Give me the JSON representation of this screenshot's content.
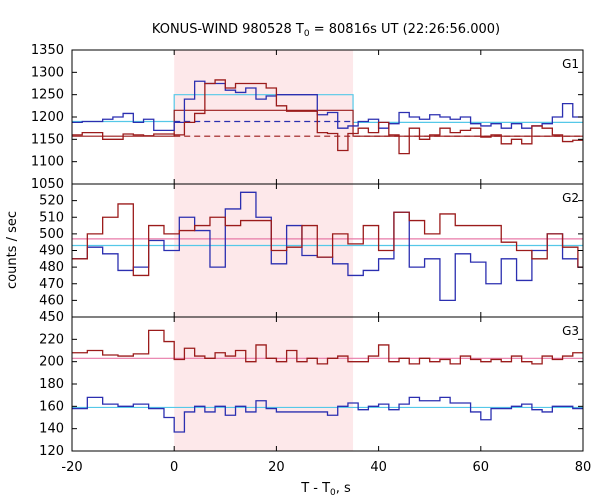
{
  "chart_data": {
    "type": "line",
    "subtype": "step-histogram",
    "title": {
      "prefix": "KONUS-WIND 980528 T",
      "sub": "0",
      "suffix": " = 80816s UT (22:26:56.000)"
    },
    "xlabel": {
      "prefix": "T - T",
      "sub": "0",
      "suffix": ", s"
    },
    "ylabel": "counts / sec",
    "xlim": [
      -20,
      80
    ],
    "x_ticks": [
      -20,
      0,
      20,
      40,
      60,
      80
    ],
    "highlight_interval": [
      0,
      35
    ],
    "colors": {
      "red": "#9b1b1b",
      "blue": "#2b2fb0",
      "cyan": "#55c8e8",
      "pink": "#e87aa8",
      "shade": "#fde8ea"
    },
    "panels": [
      {
        "label": "G1",
        "ylim": [
          1050,
          1350
        ],
        "y_ticks": [
          1050,
          1100,
          1150,
          1200,
          1250,
          1300,
          1350
        ],
        "bin_edges": [
          -20,
          -18,
          -16,
          -14,
          -12,
          -10,
          -8,
          -6,
          -4,
          0,
          2,
          4,
          6,
          8,
          10,
          12,
          14,
          16,
          18,
          20,
          22,
          24,
          26,
          28,
          30,
          32,
          34,
          36,
          38,
          40,
          42,
          44,
          46,
          48,
          50,
          52,
          54,
          56,
          58,
          60,
          62,
          64,
          66,
          68,
          70,
          72,
          74,
          76,
          78,
          80
        ],
        "series": [
          {
            "color_key": "blue",
            "values": [
              1188,
              1190,
              1190,
              1195,
              1200,
              1208,
              1188,
              1195,
              1170,
              1188,
              1240,
              1280,
              1275,
              1275,
              1260,
              1255,
              1265,
              1240,
              1247,
              1250,
              1250,
              1250,
              1250,
              1205,
              1210,
              1175,
              1180,
              1190,
              1195,
              1175,
              1185,
              1210,
              1200,
              1195,
              1205,
              1200,
              1195,
              1200,
              1185,
              1180,
              1185,
              1175,
              1185,
              1175,
              1180,
              1185,
              1200,
              1230,
              1200
            ]
          },
          {
            "color_key": "red",
            "values": [
              1160,
              1165,
              1165,
              1150,
              1150,
              1162,
              1160,
              1158,
              1162,
              1160,
              1188,
              1208,
              1275,
              1283,
              1265,
              1275,
              1275,
              1275,
              1265,
              1225,
              1213,
              1213,
              1213,
              1165,
              1163,
              1125,
              1163,
              1175,
              1165,
              1188,
              1160,
              1118,
              1175,
              1150,
              1160,
              1175,
              1165,
              1170,
              1175,
              1155,
              1160,
              1140,
              1150,
              1140,
              1180,
              1175,
              1160,
              1145,
              1148
            ]
          }
        ],
        "background_fits": [
          {
            "color_key": "cyan",
            "dash": false,
            "points": [
              [
                -20,
                1190
              ],
              [
                0,
                1190
              ],
              [
                0,
                1250
              ],
              [
                35,
                1250
              ],
              [
                35,
                1188
              ],
              [
                80,
                1188
              ]
            ]
          },
          {
            "color_key": "red",
            "dash": false,
            "points": [
              [
                -20,
                1157
              ],
              [
                0,
                1157
              ],
              [
                0,
                1215
              ],
              [
                35,
                1215
              ],
              [
                35,
                1157
              ],
              [
                80,
                1157
              ]
            ]
          },
          {
            "color_key": "blue",
            "dash": true,
            "points": [
              [
                0,
                1190
              ],
              [
                35,
                1190
              ]
            ]
          },
          {
            "color_key": "red",
            "dash": true,
            "points": [
              [
                0,
                1157
              ],
              [
                80,
                1157
              ]
            ]
          }
        ]
      },
      {
        "label": "G2",
        "ylim": [
          450,
          530
        ],
        "y_ticks": [
          450,
          460,
          470,
          480,
          490,
          500,
          510,
          520
        ],
        "bin_edges": [
          -20,
          -17,
          -14,
          -11,
          -8,
          -5,
          -2,
          1,
          4,
          7,
          10,
          13,
          16,
          19,
          22,
          25,
          28,
          31,
          34,
          37,
          40,
          43,
          46,
          49,
          52,
          55,
          58,
          61,
          64,
          67,
          70,
          73,
          76,
          79,
          80
        ],
        "series": [
          {
            "color_key": "blue",
            "values": [
              485,
              492,
              488,
              478,
              480,
              496,
              490,
              510,
              502,
              480,
              515,
              525,
              510,
              482,
              505,
              487,
              486,
              482,
              475,
              478,
              485,
              513,
              480,
              485,
              460,
              488,
              483,
              470,
              485,
              472,
              490,
              500,
              485,
              480
            ]
          },
          {
            "color_key": "red",
            "values": [
              485,
              500,
              510,
              518,
              475,
              505,
              500,
              502,
              505,
              510,
              505,
              508,
              508,
              490,
              492,
              505,
              486,
              500,
              494,
              505,
              490,
              513,
              508,
              500,
              512,
              505,
              505,
              505,
              495,
              490,
              485,
              500,
              492,
              480
            ]
          }
        ],
        "background_fits": [
          {
            "color_key": "pink",
            "dash": false,
            "points": [
              [
                -20,
                497
              ],
              [
                80,
                497
              ]
            ]
          },
          {
            "color_key": "cyan",
            "dash": false,
            "points": [
              [
                -20,
                493
              ],
              [
                80,
                493
              ]
            ]
          }
        ]
      },
      {
        "label": "G3",
        "ylim": [
          120,
          240
        ],
        "y_ticks": [
          120,
          140,
          160,
          180,
          200,
          220
        ],
        "bin_edges": [
          -20,
          -17,
          -14,
          -11,
          -8,
          -5,
          -2,
          0,
          2,
          4,
          6,
          8,
          10,
          12,
          14,
          16,
          18,
          20,
          22,
          24,
          26,
          28,
          30,
          32,
          34,
          36,
          38,
          40,
          42,
          44,
          46,
          48,
          50,
          52,
          54,
          56,
          58,
          60,
          62,
          64,
          66,
          68,
          70,
          72,
          74,
          76,
          78,
          80
        ],
        "series": [
          {
            "color_key": "red",
            "values": [
              208,
              210,
              206,
              205,
              207,
              228,
              218,
              202,
              212,
              205,
              203,
              208,
              205,
              210,
              200,
              215,
              203,
              200,
              210,
              200,
              203,
              198,
              203,
              205,
              200,
              200,
              205,
              215,
              200,
              203,
              198,
              203,
              200,
              202,
              198,
              205,
              202,
              200,
              202,
              200,
              205,
              200,
              198,
              205,
              202,
              205,
              208
            ]
          },
          {
            "color_key": "blue",
            "values": [
              158,
              168,
              162,
              160,
              162,
              158,
              150,
              137,
              155,
              160,
              155,
              160,
              152,
              160,
              155,
              165,
              158,
              155,
              155,
              155,
              155,
              155,
              152,
              160,
              163,
              157,
              160,
              162,
              157,
              162,
              168,
              165,
              165,
              168,
              163,
              163,
              155,
              148,
              158,
              158,
              160,
              162,
              157,
              155,
              160,
              160,
              158
            ]
          }
        ],
        "background_fits": [
          {
            "color_key": "pink",
            "dash": false,
            "points": [
              [
                -20,
                203
              ],
              [
                80,
                203
              ]
            ]
          },
          {
            "color_key": "cyan",
            "dash": false,
            "points": [
              [
                -20,
                159
              ],
              [
                80,
                159
              ]
            ]
          }
        ]
      }
    ]
  }
}
